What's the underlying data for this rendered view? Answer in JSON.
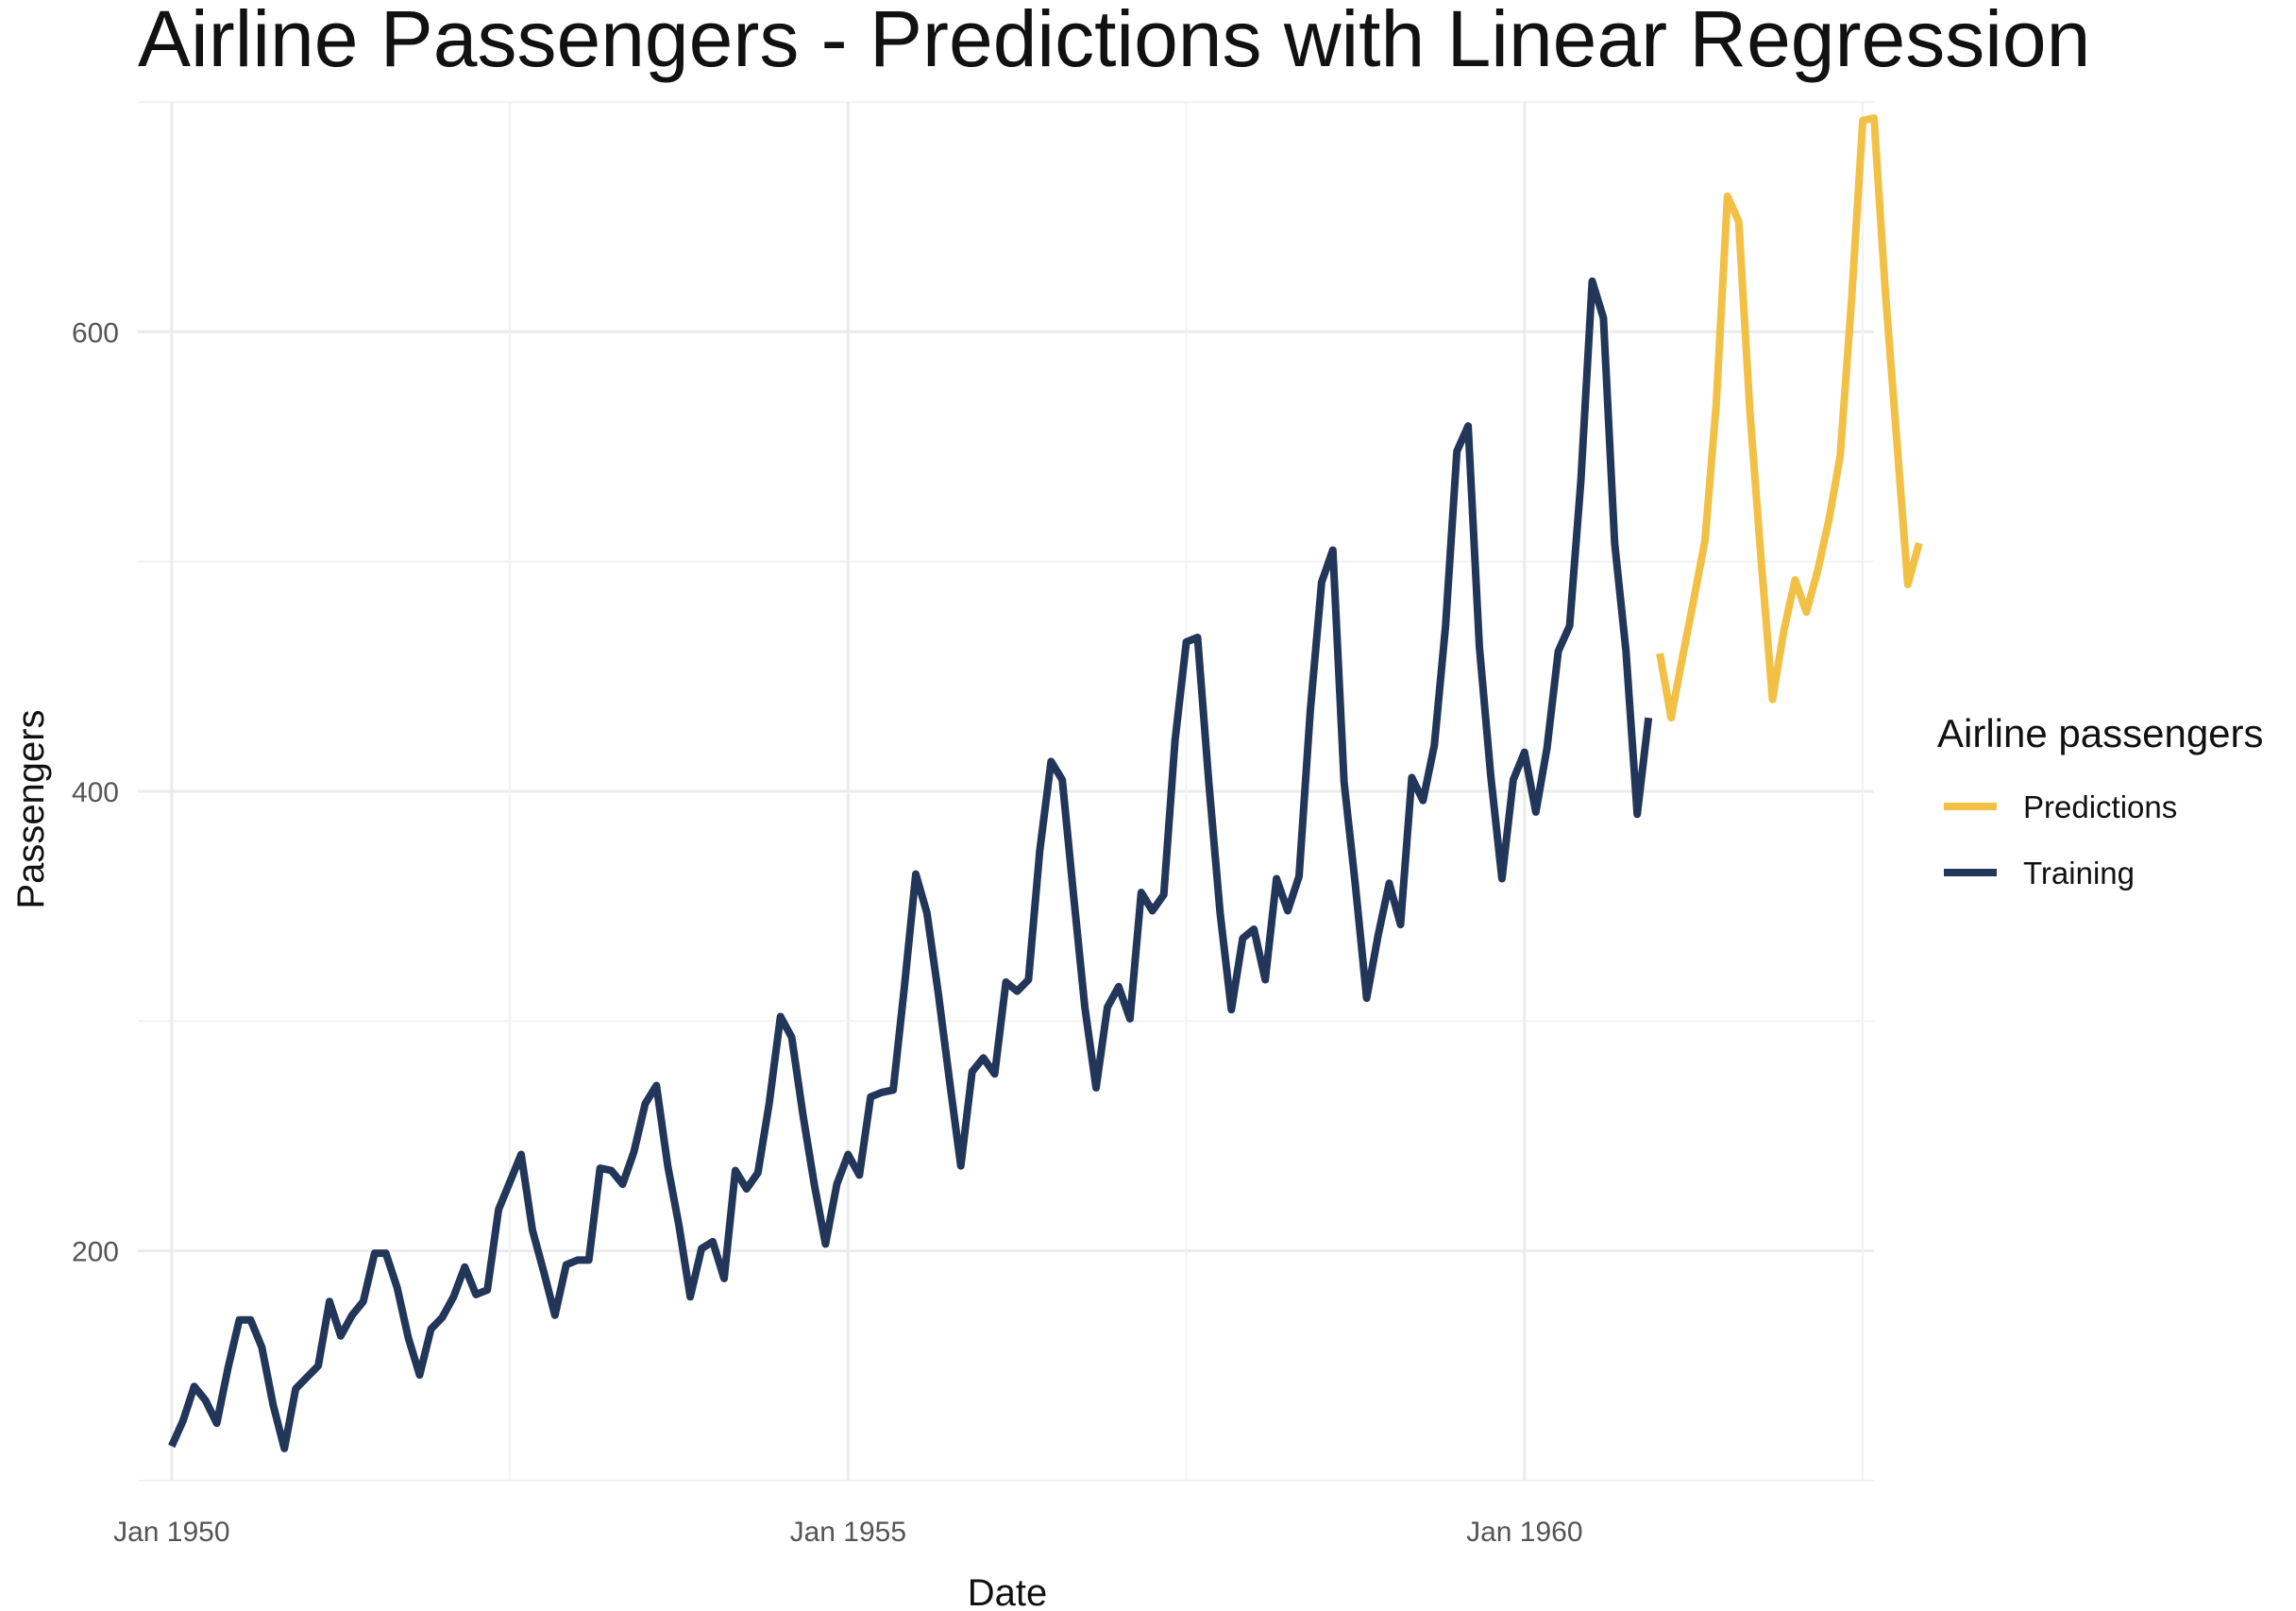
{
  "chart_data": {
    "type": "line",
    "title": "Airline Passengers - Predictions with Linear Regression",
    "xlabel": "Date",
    "ylabel": "Passengers",
    "xlim": [
      "1949-10",
      "1962-08"
    ],
    "ylim": [
      100,
      700
    ],
    "xticks": [
      {
        "date": "1950-01",
        "label": "Jan 1950"
      },
      {
        "date": "1955-01",
        "label": "Jan 1955"
      },
      {
        "date": "1960-01",
        "label": "Jan 1960"
      }
    ],
    "x_minor_ticks": [
      "1952-07",
      "1957-07",
      "1962-07"
    ],
    "yticks": [
      200,
      400,
      600
    ],
    "y_minor_ticks": [
      100,
      300,
      500,
      700
    ],
    "grid": true,
    "legend": {
      "title": "Airline passengers",
      "position": "right",
      "entries": [
        "Predictions",
        "Training"
      ]
    },
    "series": [
      {
        "name": "Training",
        "color": "#22365a",
        "start": "1950-01",
        "frequency": "monthly",
        "values": [
          115,
          126,
          141,
          135,
          125,
          149,
          170,
          170,
          158,
          133,
          114,
          140,
          145,
          150,
          178,
          163,
          172,
          178,
          199,
          199,
          184,
          162,
          146,
          166,
          171,
          180,
          193,
          181,
          183,
          218,
          230,
          242,
          209,
          191,
          172,
          194,
          196,
          196,
          236,
          235,
          229,
          243,
          264,
          272,
          237,
          211,
          180,
          201,
          204,
          188,
          235,
          227,
          234,
          264,
          302,
          293,
          259,
          229,
          203,
          229,
          242,
          233,
          267,
          269,
          270,
          315,
          364,
          347,
          312,
          274,
          237,
          278,
          284,
          277,
          317,
          313,
          318,
          374,
          413,
          405,
          355,
          306,
          271,
          306,
          315,
          301,
          356,
          348,
          355,
          422,
          465,
          467,
          404,
          347,
          305,
          336,
          340,
          318,
          362,
          348,
          363,
          435,
          491,
          505,
          404,
          359,
          310,
          337,
          360,
          342,
          406,
          396,
          420,
          472,
          548,
          559,
          463,
          407,
          362,
          405,
          417,
          391,
          419,
          461,
          472,
          535,
          622,
          606,
          508,
          461,
          390,
          432
        ]
      },
      {
        "name": "Predictions",
        "color": "#f2c044",
        "start": "1961-01",
        "frequency": "monthly",
        "values": [
          460,
          432,
          458,
          483,
          509,
          568,
          659,
          648,
          565,
          500,
          440,
          470,
          492,
          478,
          496,
          518,
          546,
          613,
          692,
          693,
          618,
          554,
          490,
          508
        ]
      }
    ]
  }
}
